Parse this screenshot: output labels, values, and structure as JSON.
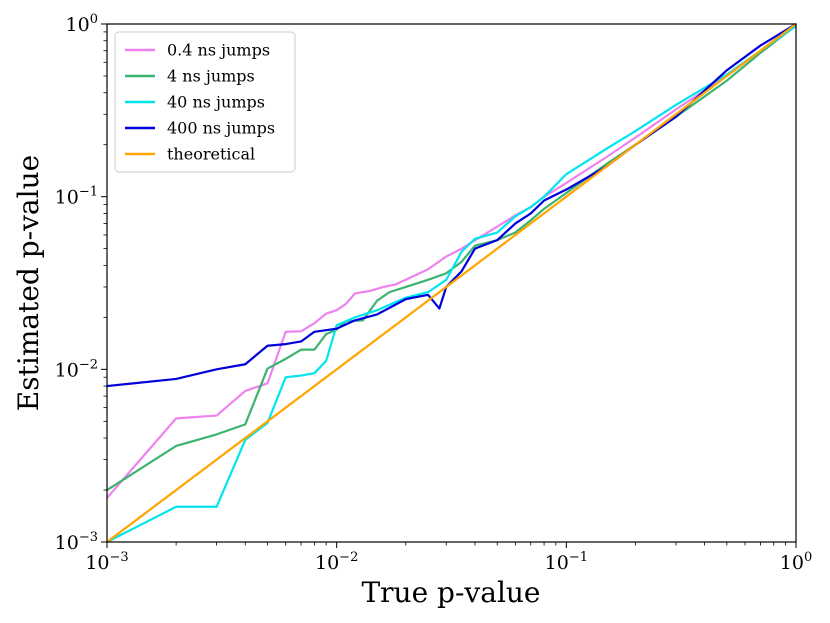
{
  "chart_data": {
    "type": "line",
    "title": "",
    "xlabel": "True p-value",
    "ylabel": "Estimated p-value",
    "xscale": "log",
    "yscale": "log",
    "xlim": [
      0.001,
      1
    ],
    "ylim": [
      0.001,
      1
    ],
    "x_ticks": [
      {
        "value": 0.001,
        "base": "10",
        "exp": "−3"
      },
      {
        "value": 0.01,
        "base": "10",
        "exp": "−2"
      },
      {
        "value": 0.1,
        "base": "10",
        "exp": "−1"
      },
      {
        "value": 1,
        "base": "10",
        "exp": "0"
      }
    ],
    "y_ticks": [
      {
        "value": 0.001,
        "base": "10",
        "exp": "−3"
      },
      {
        "value": 0.01,
        "base": "10",
        "exp": "−2"
      },
      {
        "value": 0.1,
        "base": "10",
        "exp": "−1"
      },
      {
        "value": 1,
        "base": "10",
        "exp": "0"
      }
    ],
    "grid": false,
    "legend_position": "top-left",
    "series": [
      {
        "name": "0.4 ns jumps",
        "color": "#ee82ee",
        "points": [
          [
            0.001,
            0.0018
          ],
          [
            0.002,
            0.0052
          ],
          [
            0.003,
            0.0054
          ],
          [
            0.004,
            0.0075
          ],
          [
            0.005,
            0.0083
          ],
          [
            0.006,
            0.0165
          ],
          [
            0.007,
            0.0166
          ],
          [
            0.008,
            0.0185
          ],
          [
            0.009,
            0.021
          ],
          [
            0.01,
            0.022
          ],
          [
            0.011,
            0.024
          ],
          [
            0.012,
            0.0275
          ],
          [
            0.014,
            0.0285
          ],
          [
            0.016,
            0.03
          ],
          [
            0.018,
            0.031
          ],
          [
            0.02,
            0.033
          ],
          [
            0.025,
            0.038
          ],
          [
            0.03,
            0.045
          ],
          [
            0.035,
            0.05
          ],
          [
            0.04,
            0.056
          ],
          [
            0.05,
            0.067
          ],
          [
            0.06,
            0.078
          ],
          [
            0.07,
            0.087
          ],
          [
            0.08,
            0.1
          ],
          [
            0.1,
            0.12
          ],
          [
            0.15,
            0.17
          ],
          [
            0.2,
            0.22
          ],
          [
            0.3,
            0.32
          ],
          [
            0.5,
            0.5
          ],
          [
            0.7,
            0.7
          ],
          [
            1.0,
            1.0
          ]
        ]
      },
      {
        "name": "4 ns jumps",
        "color": "#3cb371",
        "points": [
          [
            0.001,
            0.002
          ],
          [
            0.002,
            0.0036
          ],
          [
            0.003,
            0.0042
          ],
          [
            0.004,
            0.0048
          ],
          [
            0.005,
            0.0101
          ],
          [
            0.006,
            0.0115
          ],
          [
            0.007,
            0.013
          ],
          [
            0.008,
            0.013
          ],
          [
            0.009,
            0.016
          ],
          [
            0.01,
            0.017
          ],
          [
            0.011,
            0.019
          ],
          [
            0.013,
            0.0192
          ],
          [
            0.015,
            0.025
          ],
          [
            0.017,
            0.028
          ],
          [
            0.02,
            0.03
          ],
          [
            0.025,
            0.033
          ],
          [
            0.03,
            0.036
          ],
          [
            0.035,
            0.042
          ],
          [
            0.04,
            0.052
          ],
          [
            0.05,
            0.056
          ],
          [
            0.06,
            0.062
          ],
          [
            0.07,
            0.073
          ],
          [
            0.08,
            0.085
          ],
          [
            0.1,
            0.105
          ],
          [
            0.15,
            0.155
          ],
          [
            0.2,
            0.2
          ],
          [
            0.3,
            0.29
          ],
          [
            0.5,
            0.47
          ],
          [
            0.7,
            0.68
          ],
          [
            1.0,
            0.98
          ]
        ]
      },
      {
        "name": "40 ns jumps",
        "color": "#00e5ee",
        "points": [
          [
            0.001,
            0.001
          ],
          [
            0.002,
            0.0016
          ],
          [
            0.003,
            0.0016
          ],
          [
            0.004,
            0.0039
          ],
          [
            0.005,
            0.0049
          ],
          [
            0.006,
            0.009
          ],
          [
            0.007,
            0.0092
          ],
          [
            0.008,
            0.0095
          ],
          [
            0.009,
            0.0112
          ],
          [
            0.01,
            0.018
          ],
          [
            0.012,
            0.02
          ],
          [
            0.015,
            0.022
          ],
          [
            0.02,
            0.026
          ],
          [
            0.025,
            0.028
          ],
          [
            0.03,
            0.033
          ],
          [
            0.035,
            0.048
          ],
          [
            0.04,
            0.057
          ],
          [
            0.05,
            0.062
          ],
          [
            0.06,
            0.077
          ],
          [
            0.07,
            0.087
          ],
          [
            0.08,
            0.1
          ],
          [
            0.1,
            0.135
          ],
          [
            0.15,
            0.19
          ],
          [
            0.2,
            0.24
          ],
          [
            0.3,
            0.34
          ],
          [
            0.5,
            0.51
          ],
          [
            0.7,
            0.7
          ],
          [
            1.0,
            0.97
          ]
        ]
      },
      {
        "name": "400 ns jumps",
        "color": "#0000dd",
        "points": [
          [
            0.001,
            0.008
          ],
          [
            0.002,
            0.0088
          ],
          [
            0.003,
            0.01
          ],
          [
            0.004,
            0.0107
          ],
          [
            0.005,
            0.0137
          ],
          [
            0.006,
            0.014
          ],
          [
            0.007,
            0.0145
          ],
          [
            0.008,
            0.0165
          ],
          [
            0.01,
            0.0172
          ],
          [
            0.012,
            0.0192
          ],
          [
            0.015,
            0.0208
          ],
          [
            0.02,
            0.0255
          ],
          [
            0.025,
            0.027
          ],
          [
            0.028,
            0.0225
          ],
          [
            0.03,
            0.03
          ],
          [
            0.035,
            0.037
          ],
          [
            0.04,
            0.05
          ],
          [
            0.05,
            0.056
          ],
          [
            0.06,
            0.07
          ],
          [
            0.07,
            0.08
          ],
          [
            0.08,
            0.095
          ],
          [
            0.1,
            0.11
          ],
          [
            0.15,
            0.15
          ],
          [
            0.2,
            0.2
          ],
          [
            0.3,
            0.29
          ],
          [
            0.5,
            0.54
          ],
          [
            0.7,
            0.75
          ],
          [
            1.0,
            1.0
          ]
        ]
      },
      {
        "name": "theoretical",
        "color": "#ffa500",
        "points": [
          [
            0.001,
            0.001
          ],
          [
            1.0,
            1.0
          ]
        ]
      }
    ]
  }
}
